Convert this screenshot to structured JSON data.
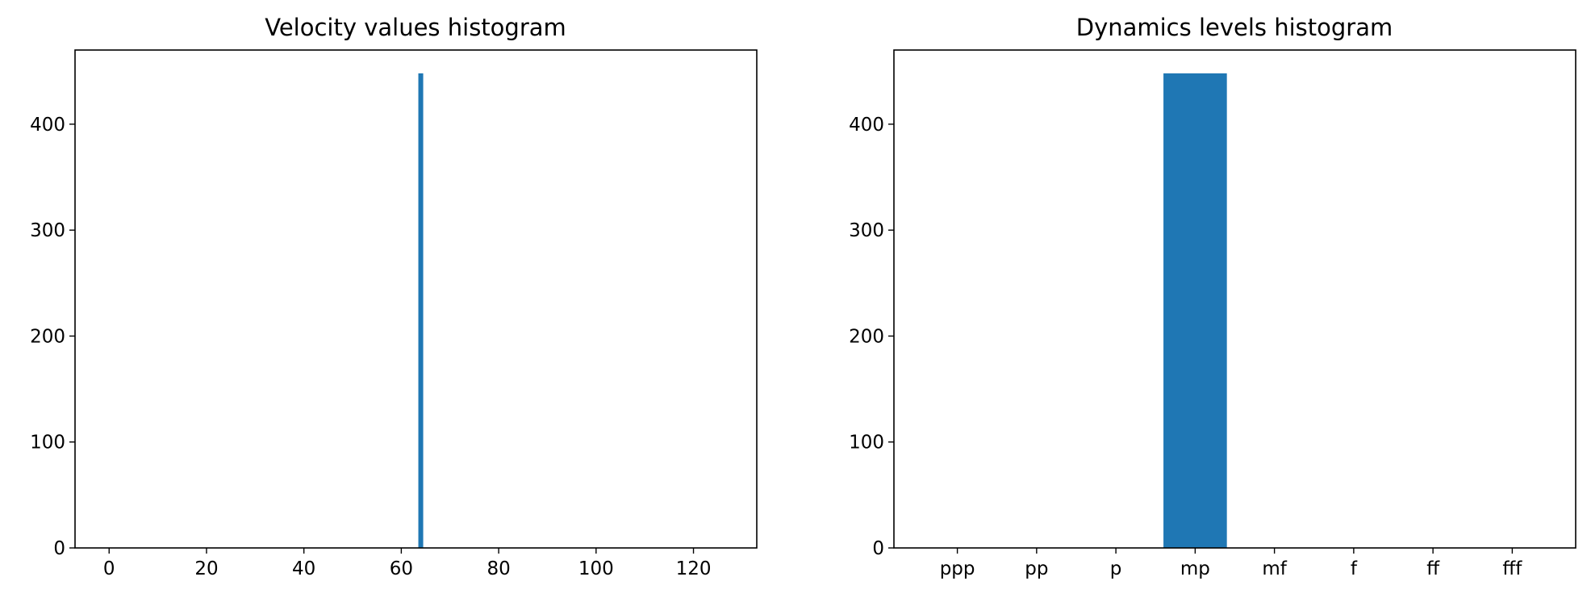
{
  "chart_data": [
    {
      "type": "bar",
      "title": "Velocity values histogram",
      "xlabel": "",
      "ylabel": "",
      "xlim": [
        -7,
        133
      ],
      "ylim": [
        0,
        470
      ],
      "xticks": [
        0,
        20,
        40,
        60,
        80,
        100,
        120
      ],
      "yticks": [
        0,
        100,
        200,
        300,
        400
      ],
      "bin_width": 1,
      "bars": [
        {
          "x": 64,
          "value": 448
        }
      ],
      "grid": false,
      "color": "#1f77b4"
    },
    {
      "type": "bar",
      "title": "Dynamics levels histogram",
      "xlabel": "",
      "ylabel": "",
      "categories": [
        "ppp",
        "pp",
        "p",
        "mp",
        "mf",
        "f",
        "ff",
        "fff"
      ],
      "values": [
        0,
        0,
        0,
        448,
        0,
        0,
        0,
        0
      ],
      "ylim": [
        0,
        470
      ],
      "yticks": [
        0,
        100,
        200,
        300,
        400
      ],
      "grid": false,
      "color": "#1f77b4"
    }
  ]
}
